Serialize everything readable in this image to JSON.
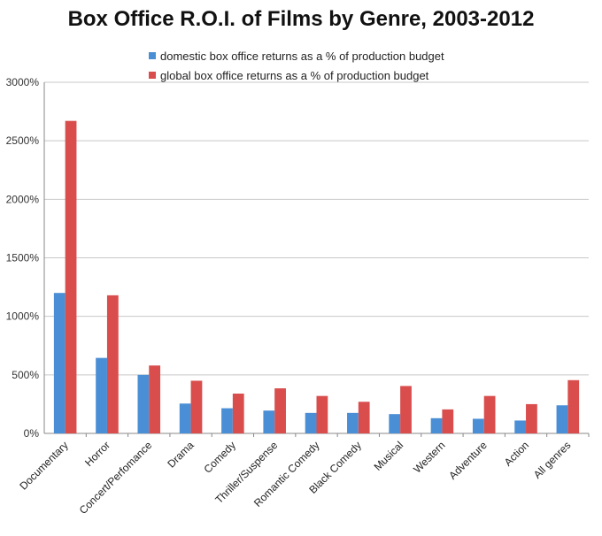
{
  "chart_data": {
    "type": "bar",
    "title": "Box Office R.O.I. of Films by Genre, 2003-2012",
    "xlabel": "",
    "ylabel": "",
    "categories": [
      "Documentary",
      "Horror",
      "Concert/Perfomance",
      "Drama",
      "Comedy",
      "Thriller/Suspense",
      "Romantic Comedy",
      "Black Comedy",
      "Musical",
      "Western",
      "Adventure",
      "Action",
      "All genres"
    ],
    "series": [
      {
        "name": "domestic box office returns as a % of production budget",
        "color": "#4a8fd6",
        "values": [
          1200,
          645,
          500,
          255,
          215,
          195,
          175,
          175,
          165,
          130,
          125,
          110,
          240
        ]
      },
      {
        "name": "global box office returns as a % of production budget",
        "color": "#d94d4d",
        "values": [
          2670,
          1180,
          580,
          450,
          340,
          385,
          320,
          270,
          405,
          205,
          320,
          250,
          455
        ]
      }
    ],
    "ylim": [
      0,
      3000
    ],
    "yticks": [
      0,
      500,
      1000,
      1500,
      2000,
      2500,
      3000
    ],
    "ytick_labels": [
      "0%",
      "500%",
      "1000%",
      "1500%",
      "2000%",
      "2500%",
      "3000%"
    ],
    "grid": true,
    "legend_position": "top"
  }
}
